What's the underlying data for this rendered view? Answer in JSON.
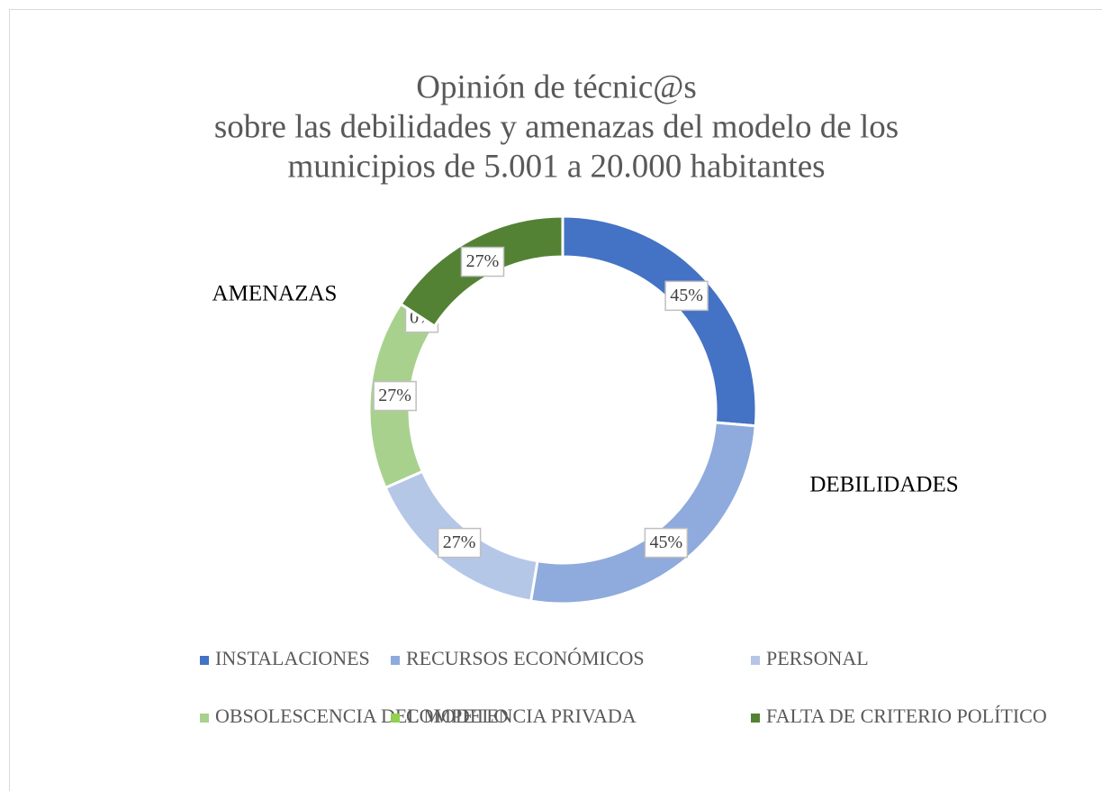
{
  "chart_data": {
    "type": "donut",
    "title": [
      "Opinión de técnic@s",
      "sobre las debilidades y amenazas del modelo de los",
      "municipios de 5.001 a 20.000 habitantes"
    ],
    "categories": [
      "INSTALACIONES",
      "RECURSOS ECONÓMICOS",
      "PERSONAL",
      "OBSOLESCENCIA DEL MODELO",
      "COMPETENCIA PRIVADA",
      "FALTA DE CRITERIO POLÍTICO"
    ],
    "values": [
      45,
      45,
      27,
      27,
      0,
      27
    ],
    "value_labels": [
      "45%",
      "45%",
      "27%",
      "27%",
      "0%",
      "27%"
    ],
    "colors": [
      "#4472c4",
      "#8faadc",
      "#b4c7e7",
      "#a9d18e",
      "#92d050",
      "#548235"
    ],
    "annotations": [
      "AMENAZAS",
      "DEBILIDADES"
    ],
    "legend": "bottom"
  }
}
